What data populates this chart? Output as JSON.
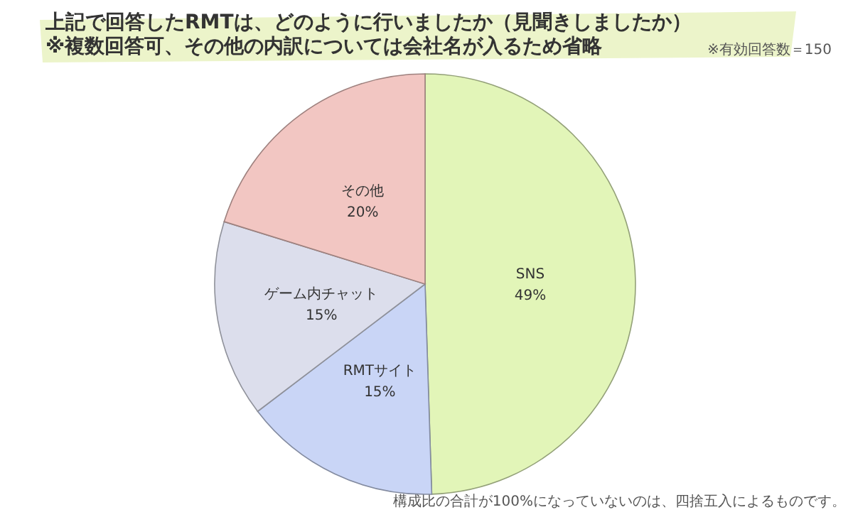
{
  "chart_data": {
    "type": "pie",
    "title": "上記で回答したRMTは、どのように行いましたか（見聞きしましたか）",
    "subtitle": "※複数回答可、その他の内訳については会社名が入るため省略",
    "categories": [
      "SNS",
      "RMTサイト",
      "ゲーム内チャット",
      "その他"
    ],
    "values": [
      49,
      15,
      15,
      20
    ],
    "colors": [
      "#e2f5b8",
      "#c9d5f6",
      "#dcdeec",
      "#f2c6c2"
    ],
    "value_labels": [
      "49%",
      "15%",
      "15%",
      "20%"
    ],
    "legend": false,
    "annotations": [
      "※有効回答数＝150",
      "構成比の合計が100%になっていないのは、四捨五入によるものです。"
    ]
  }
}
